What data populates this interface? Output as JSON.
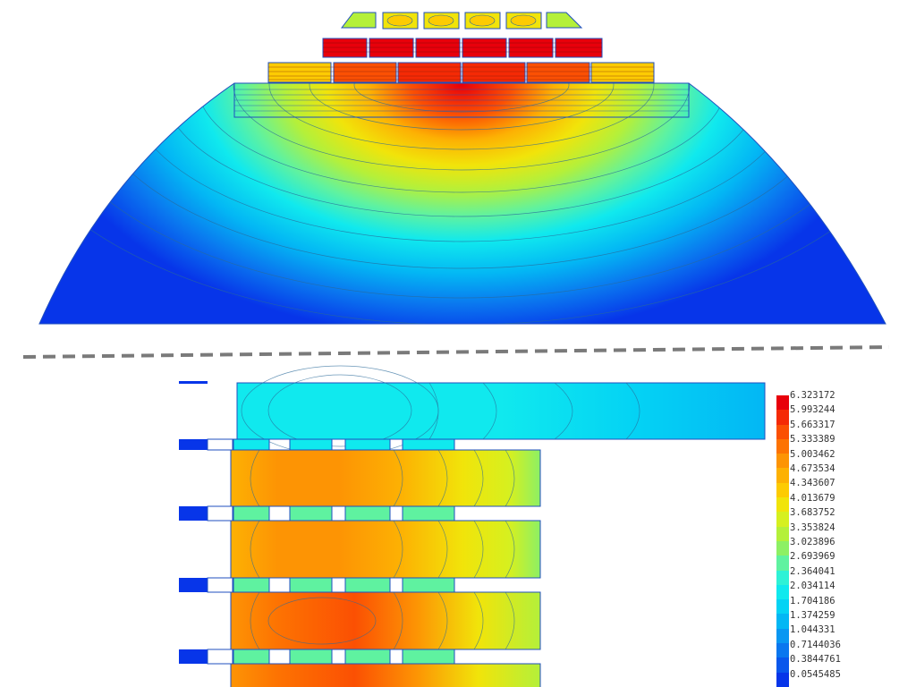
{
  "figure": {
    "top_panel": "axisymmetric-field-overview",
    "bottom_panel": "zoomed-detail",
    "separator": "dashed-line"
  },
  "legend": {
    "labels": [
      "6.323172",
      "5.993244",
      "5.663317",
      "5.333389",
      "5.003462",
      "4.673534",
      "4.343607",
      "4.013679",
      "3.683752",
      "3.353824",
      "3.023896",
      "2.693969",
      "2.364041",
      "2.034114",
      "1.704186",
      "1.374259",
      "1.044331",
      "0.7144036",
      "0.3844761",
      "0.0545485"
    ],
    "colors": [
      "#e8000b",
      "#f52a05",
      "#fb5003",
      "#fd7302",
      "#fd9404",
      "#fdb103",
      "#fdcb02",
      "#f1e40a",
      "#d6f01f",
      "#b4f03a",
      "#8df064",
      "#5ff2a0",
      "#2ef2d6",
      "#10e9ee",
      "#04d3f4",
      "#03b7f4",
      "#0897f2",
      "#0a77ef",
      "#0957ec",
      "#0735e9"
    ]
  },
  "colors": {
    "outline": "#1f4fbf",
    "contour": "#2a6a9a",
    "separator": "#7a7a7a",
    "background": "#ffffff"
  }
}
